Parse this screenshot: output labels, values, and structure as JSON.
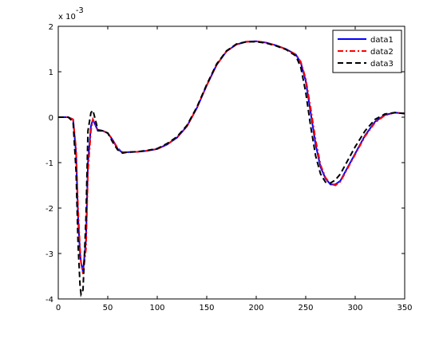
{
  "chart_data": {
    "type": "line",
    "y_multiplier": {
      "base": "x 10",
      "exponent": "-3"
    },
    "x": [
      0,
      10,
      15,
      18,
      20,
      22,
      23,
      25,
      28,
      30,
      33,
      35,
      38,
      40,
      45,
      50,
      55,
      60,
      65,
      70,
      80,
      90,
      100,
      110,
      120,
      130,
      140,
      150,
      160,
      170,
      180,
      190,
      200,
      210,
      220,
      230,
      240,
      245,
      250,
      255,
      260,
      265,
      270,
      275,
      280,
      285,
      290,
      300,
      310,
      320,
      330,
      340,
      350
    ],
    "xlim": [
      0,
      350
    ],
    "xticks": [
      0,
      50,
      100,
      150,
      200,
      250,
      300,
      350
    ],
    "ylim": [
      -4,
      2
    ],
    "yticks": [
      -4,
      -3,
      -2,
      -1,
      0,
      1,
      2
    ],
    "legend": "upper right",
    "series": [
      {
        "name": "data1",
        "color": "#0000ff",
        "dash": "solid",
        "values": [
          0,
          0,
          -0.05,
          -0.8,
          -2.2,
          -3.0,
          -3.2,
          -3.4,
          -2.7,
          -1.0,
          -0.2,
          -0.05,
          -0.2,
          -0.3,
          -0.3,
          -0.35,
          -0.5,
          -0.7,
          -0.78,
          -0.77,
          -0.76,
          -0.74,
          -0.7,
          -0.6,
          -0.45,
          -0.2,
          0.2,
          0.7,
          1.15,
          1.45,
          1.6,
          1.66,
          1.67,
          1.64,
          1.58,
          1.5,
          1.38,
          1.2,
          0.8,
          0.1,
          -0.6,
          -1.1,
          -1.35,
          -1.48,
          -1.48,
          -1.4,
          -1.2,
          -0.8,
          -0.4,
          -0.1,
          0.05,
          0.1,
          0.08
        ]
      },
      {
        "name": "data2",
        "color": "#ff0000",
        "dash": "dashdot",
        "values": [
          0,
          0,
          -0.05,
          -0.7,
          -2.0,
          -2.9,
          -3.2,
          -3.45,
          -2.9,
          -1.2,
          -0.3,
          -0.05,
          -0.2,
          -0.28,
          -0.3,
          -0.35,
          -0.5,
          -0.68,
          -0.77,
          -0.77,
          -0.76,
          -0.74,
          -0.7,
          -0.6,
          -0.44,
          -0.2,
          0.2,
          0.7,
          1.15,
          1.45,
          1.6,
          1.66,
          1.67,
          1.64,
          1.58,
          1.5,
          1.38,
          1.22,
          0.85,
          0.2,
          -0.5,
          -1.05,
          -1.33,
          -1.47,
          -1.5,
          -1.42,
          -1.22,
          -0.82,
          -0.42,
          -0.12,
          0.04,
          0.1,
          0.08
        ]
      },
      {
        "name": "data3",
        "color": "#000000",
        "dash": "dashed",
        "values": [
          0,
          0,
          -0.1,
          -1.2,
          -2.8,
          -3.7,
          -3.9,
          -3.8,
          -2.2,
          -0.3,
          0.1,
          0.15,
          -0.1,
          -0.28,
          -0.3,
          -0.35,
          -0.55,
          -0.72,
          -0.79,
          -0.77,
          -0.76,
          -0.73,
          -0.69,
          -0.58,
          -0.43,
          -0.18,
          0.22,
          0.72,
          1.17,
          1.46,
          1.61,
          1.66,
          1.66,
          1.63,
          1.57,
          1.49,
          1.35,
          1.1,
          0.55,
          -0.2,
          -0.85,
          -1.25,
          -1.43,
          -1.45,
          -1.38,
          -1.25,
          -1.05,
          -0.65,
          -0.3,
          -0.05,
          0.07,
          0.1,
          0.08
        ]
      }
    ]
  }
}
